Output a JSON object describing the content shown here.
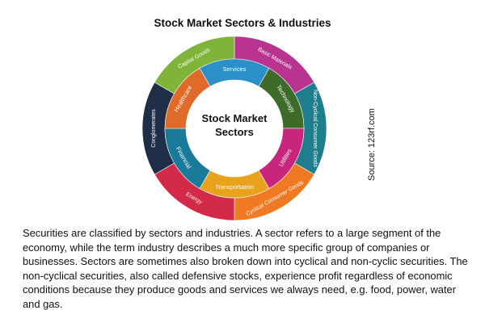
{
  "title": "Stock Market Sectors & Industries",
  "center_label": {
    "line1": "Stock Market",
    "line2": "Sectors"
  },
  "outer_ring": [
    {
      "label": "Basic Materials",
      "color": "#b8348f"
    },
    {
      "label": "Non-Cyclical Consumer Goods",
      "color": "#1e7e8e"
    },
    {
      "label": "Cyclical Consumer Goods",
      "color": "#f07a24"
    },
    {
      "label": "Energy",
      "color": "#d42a4a"
    },
    {
      "label": "Conglomerates",
      "color": "#1e2e46"
    },
    {
      "label": "Capital Goods",
      "color": "#7fb43a"
    }
  ],
  "inner_ring": [
    {
      "label": "Services",
      "color": "#2b8fc8"
    },
    {
      "label": "Technology",
      "color": "#3e6a2a"
    },
    {
      "label": "Utilities",
      "color": "#c8267c"
    },
    {
      "label": "Transportation",
      "color": "#e8a21c"
    },
    {
      "label": "Financial",
      "color": "#1a7a9a"
    },
    {
      "label": "Healthcare",
      "color": "#e06a2a"
    }
  ],
  "source": "Source: 123rf.com",
  "description": "Securities are classified by sectors and industries. A sector refers to a large segment of the economy, while the term industry describes a much more specific group of companies or businesses. Sectors are sometimes also broken down into cyclical and non-cyclic securities. The non-cyclical securities, also called defensive stocks, experience profit regardless of economic conditions because they produce goods and services we always need, e.g. food, power, water and gas."
}
